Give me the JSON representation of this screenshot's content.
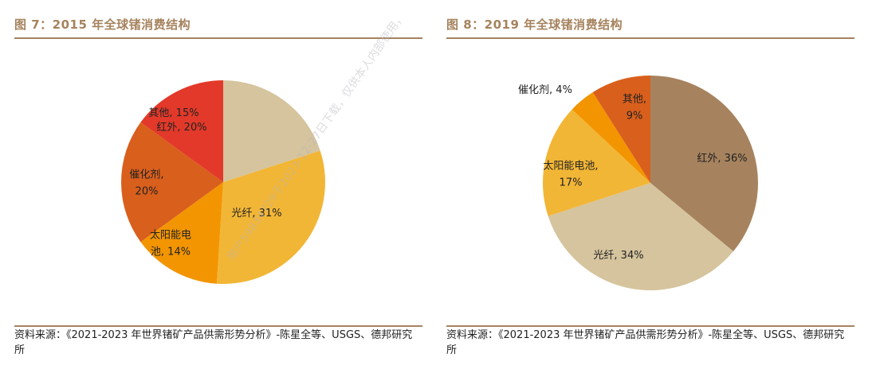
{
  "chart_data": [
    {
      "type": "pie",
      "title": "图 7：2015 年全球锗消费结构",
      "categories": [
        "红外",
        "光纤",
        "太阳能电池",
        "催化剂",
        "其他"
      ],
      "values": [
        20,
        31,
        14,
        20,
        15
      ],
      "unit": "%",
      "data_labels": [
        {
          "lines": [
            "红外, 20%"
          ]
        },
        {
          "lines": [
            "光纤, 31%"
          ]
        },
        {
          "lines": [
            "太阳能电",
            "池, 14%"
          ]
        },
        {
          "lines": [
            "催化剂,",
            "20%"
          ]
        },
        {
          "lines": [
            "其他, 15%"
          ]
        }
      ],
      "colors": [
        "#D5C49D",
        "#F2B636",
        "#F39500",
        "#D95F1C",
        "#E3392A"
      ],
      "source": "资料来源：《2021-2023 年世界锗矿产品供需形势分析》-陈星全等、USGS、德邦研究所"
    },
    {
      "type": "pie",
      "title": "图 8：2019 年全球锗消费结构",
      "categories": [
        "红外",
        "光纤",
        "太阳能电池",
        "催化剂",
        "其他"
      ],
      "values": [
        36,
        34,
        17,
        4,
        9
      ],
      "unit": "%",
      "data_labels": [
        {
          "lines": [
            "红外, 36%"
          ]
        },
        {
          "lines": [
            "光纤, 34%"
          ]
        },
        {
          "lines": [
            "太阳能电池,",
            "17%"
          ]
        },
        {
          "lines": [
            "催化剂, 4%"
          ]
        },
        {
          "lines": [
            "其他,",
            "9%"
          ]
        }
      ],
      "colors": [
        "#A6835E",
        "#D5C49D",
        "#F2B636",
        "#F39500",
        "#D95F1C"
      ],
      "source": "资料来源：《2021-2023 年世界锗矿产品供需形势分析》-陈星全等、USGS、德邦研究所"
    }
  ],
  "watermark": "用户59834729于2023-12-27日下载，仅供本人内部使用，"
}
